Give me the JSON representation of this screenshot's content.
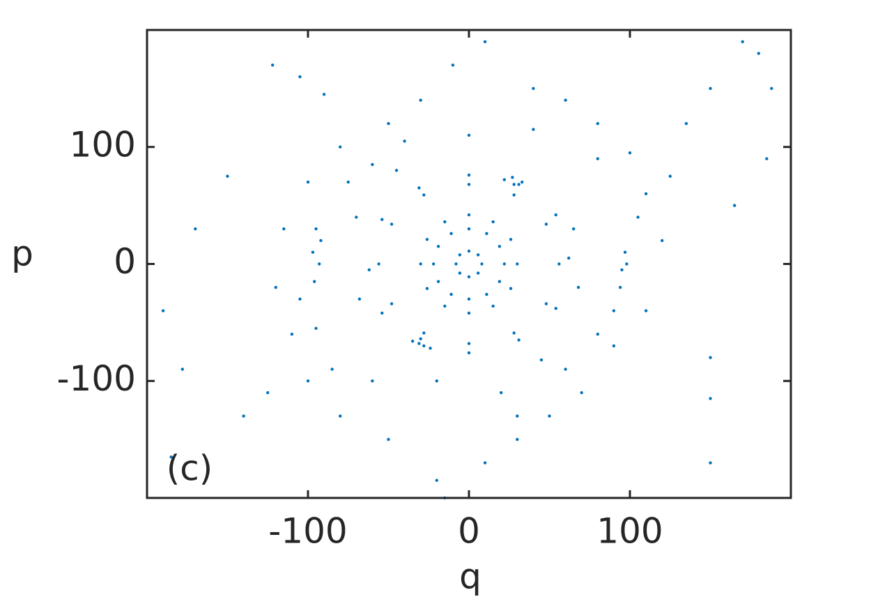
{
  "chart_data": {
    "type": "scatter",
    "x_label": "q",
    "y_label": "p",
    "annotation": "(c)",
    "color": "#0072bd",
    "xlim": [
      -200,
      200
    ],
    "ylim": [
      -200,
      200
    ],
    "xticks": [
      -100,
      0,
      100
    ],
    "yticks": [
      -100,
      0,
      100
    ],
    "grid": false,
    "x": [
      8,
      5.7,
      0,
      -5.7,
      -8,
      -5.7,
      0,
      5.7,
      22,
      19,
      11,
      0,
      -11,
      -19,
      -22,
      -19,
      -11,
      0,
      11,
      19,
      30,
      26,
      15,
      0,
      -15,
      -26,
      -30,
      -26,
      -15,
      0,
      15,
      26,
      56,
      48,
      28,
      0,
      -28,
      -48,
      -56,
      -48,
      -28,
      0,
      28,
      48,
      62,
      54,
      31,
      0,
      -31,
      -54,
      -62,
      -54,
      -31,
      0,
      31,
      54,
      -95,
      -97,
      -96,
      -93,
      -92,
      97,
      95,
      94,
      98,
      22,
      28,
      33,
      27,
      -35,
      -28,
      -24,
      -30,
      -110,
      -85,
      -75,
      -60,
      -50,
      -30,
      -10,
      10,
      40,
      60,
      80,
      100,
      110,
      120,
      110,
      90,
      70,
      50,
      30,
      10,
      -20,
      -50,
      -80,
      -100,
      -120,
      -115,
      -100,
      -80,
      -40,
      0,
      40,
      80,
      105,
      90,
      60,
      20,
      -20,
      -60,
      -95,
      -105,
      -70,
      -68,
      65,
      68,
      -45,
      45,
      -150,
      -170,
      -190,
      -178,
      -185,
      -105,
      -122,
      -90,
      170,
      180,
      188,
      185,
      150,
      135,
      165,
      150,
      150,
      150,
      -15,
      30,
      80,
      -140,
      -125,
      125
    ],
    "y": [
      0,
      7.8,
      11,
      7.8,
      0,
      -7.8,
      -11,
      -7.8,
      0,
      15,
      26,
      30,
      26,
      15,
      0,
      -15,
      -26,
      -30,
      -26,
      -15,
      0,
      21,
      36,
      42,
      36,
      21,
      0,
      -21,
      -36,
      -42,
      -36,
      -21,
      0,
      34,
      59,
      68,
      59,
      34,
      0,
      -34,
      -59,
      -68,
      -59,
      -34,
      5,
      42,
      68,
      76,
      65,
      38,
      -5,
      -42,
      -68,
      -76,
      -65,
      -38,
      30,
      10,
      -15,
      0,
      20,
      10,
      -5,
      -20,
      0,
      72,
      68,
      70,
      74,
      -66,
      -70,
      -72,
      -64,
      -60,
      -90,
      70,
      85,
      120,
      140,
      170,
      190,
      150,
      140,
      120,
      95,
      60,
      20,
      -40,
      -70,
      -110,
      -130,
      -150,
      -170,
      -185,
      -150,
      -130,
      -100,
      -20,
      30,
      70,
      100,
      105,
      110,
      115,
      90,
      40,
      -40,
      -90,
      -110,
      -100,
      -100,
      -55,
      -30,
      40,
      -30,
      30,
      -20,
      80,
      -82,
      75,
      30,
      -40,
      -90,
      -165,
      160,
      170,
      145,
      190,
      180,
      150,
      90,
      150,
      120,
      50,
      -80,
      -115,
      -170,
      -200,
      -130,
      -60,
      -130,
      -110,
      75
    ]
  }
}
